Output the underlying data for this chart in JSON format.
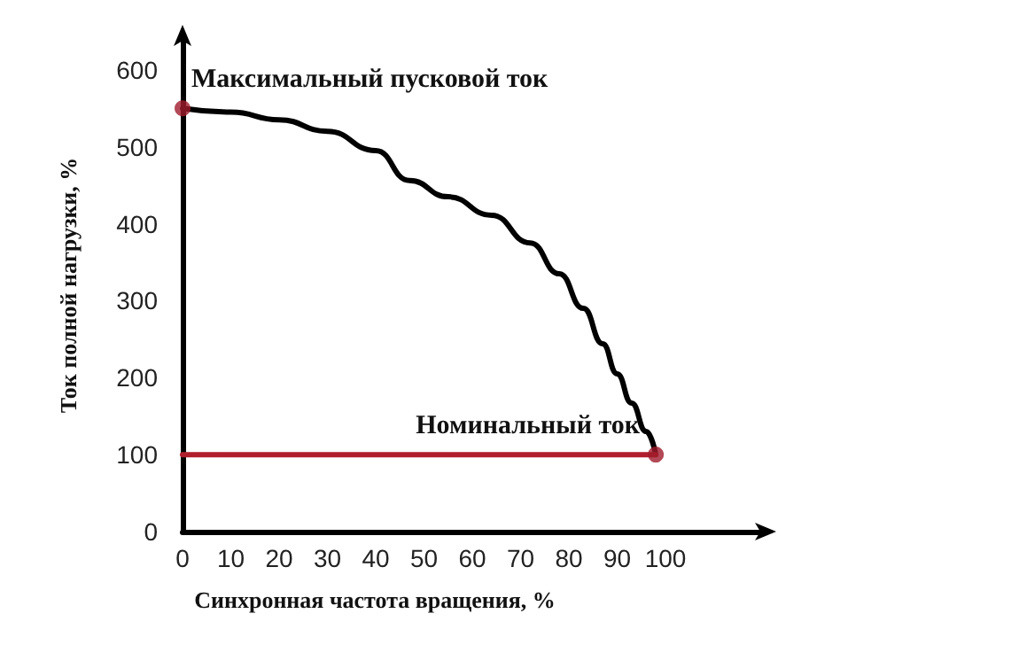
{
  "chart_data": {
    "type": "line",
    "xlabel": "Синхронная частота вращения, %",
    "ylabel": "Ток полной нагрузки, %",
    "xlim": [
      0,
      120
    ],
    "xticks": [
      0,
      10,
      20,
      30,
      40,
      50,
      60,
      70,
      80,
      90,
      100
    ],
    "ylim": [
      0,
      640
    ],
    "yticks": [
      0,
      100,
      200,
      300,
      400,
      500,
      600
    ],
    "grid": false,
    "series": [
      {
        "color": "#000000",
        "marker": "none",
        "x": [
          0,
          10,
          20,
          30,
          40,
          47,
          55,
          64,
          72,
          78,
          83,
          87,
          90,
          93,
          96,
          98
        ],
        "values": [
          550,
          545,
          535,
          520,
          495,
          456,
          435,
          411,
          375,
          335,
          290,
          244,
          205,
          167,
          130,
          100
        ]
      },
      {
        "color": "#b01e2e",
        "marker": "none",
        "x": [
          0,
          98
        ],
        "values": [
          100,
          100
        ]
      },
      {
        "type": "scatter",
        "color": "#a01c2c",
        "marker": "circle",
        "x": [
          0,
          98
        ],
        "values": [
          550,
          100
        ]
      }
    ],
    "annotations": [
      {
        "text": "Максимальный пусковой ток",
        "x": 0,
        "y": 550
      },
      {
        "text": "Номинальный ток",
        "x": 98,
        "y": 100
      }
    ]
  }
}
